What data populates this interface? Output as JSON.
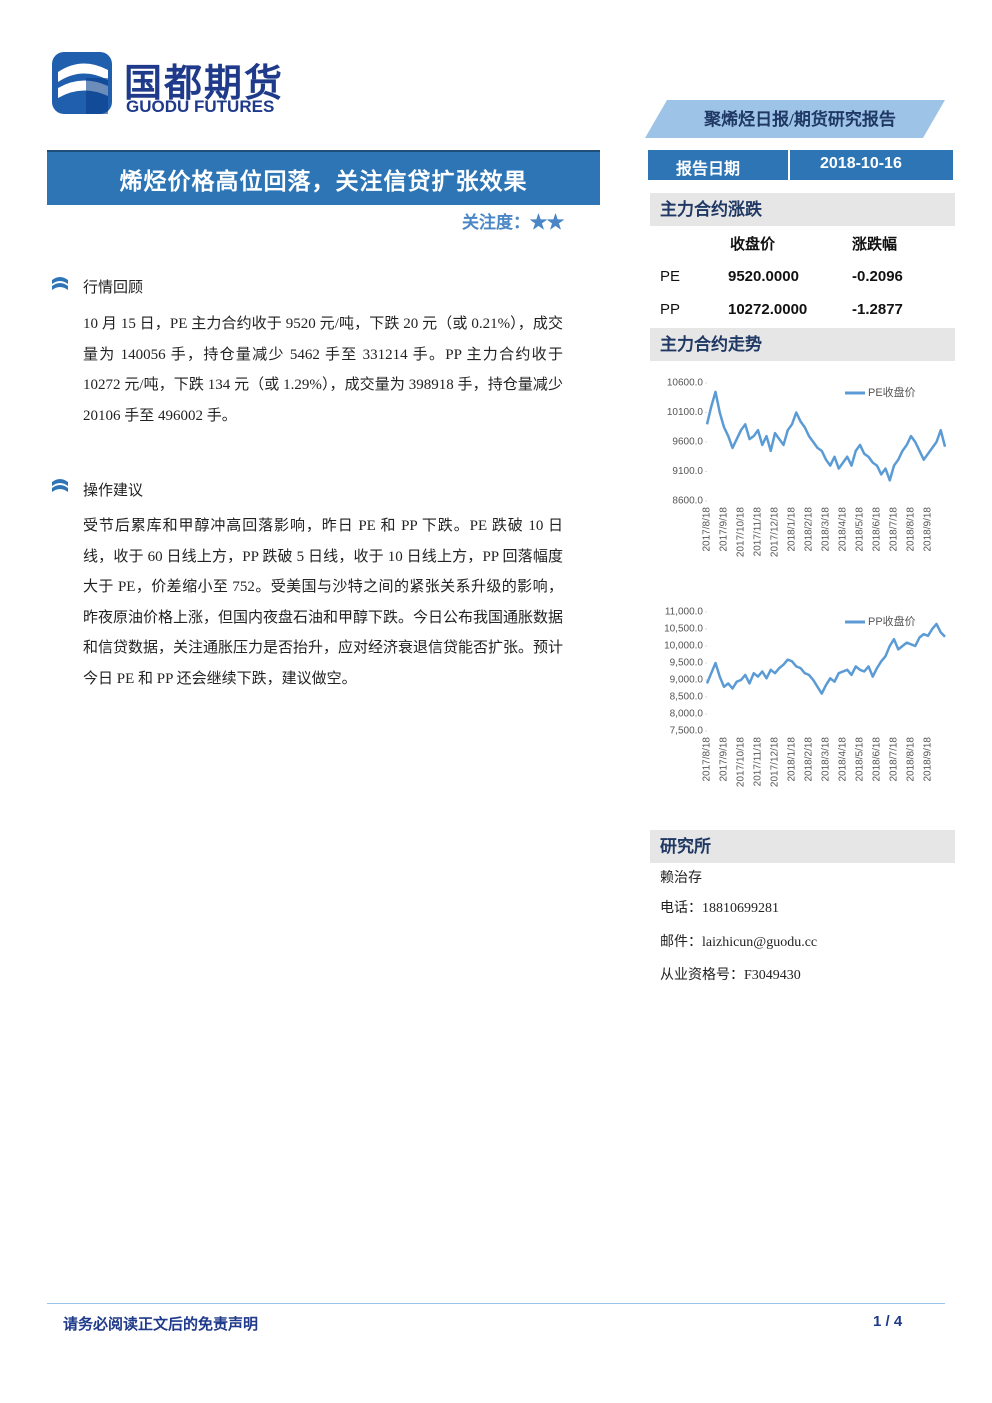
{
  "header": {
    "logo_cn": "国都期货",
    "logo_en": "GUODU FUTURES",
    "report_type": "聚烯烃日报/期货研究报告"
  },
  "title": "烯烃价格高位回落，关注信贷扩张效果",
  "focus": {
    "label": "关注度：",
    "stars": "★★"
  },
  "date": {
    "label": "报告日期",
    "value": "2018-10-16"
  },
  "sections": [
    {
      "heading": "行情回顾",
      "text": "10 月 15 日，PE 主力合约收于 9520 元/吨，下跌 20 元（或 0.21%），成交量为 140056 手，持仓量减少 5462 手至 331214 手。PP 主力合约收于 10272 元/吨，下跌 134 元（或 1.29%），成交量为 398918 手，持仓量减少 20106 手至 496002 手。"
    },
    {
      "heading": "操作建议",
      "text": "受节后累库和甲醇冲高回落影响，昨日 PE 和 PP 下跌。PE 跌破 10 日线，收于 60 日线上方，PP 跌破 5 日线，收于 10 日线上方，PP 回落幅度大于 PE，价差缩小至 752。受美国与沙特之间的紧张关系升级的影响，昨夜原油价格上涨，但国内夜盘石油和甲醇下跌。今日公布我国通胀数据和信贷数据，关注通胀压力是否抬升，应对经济衰退信贷能否扩张。预计今日 PE 和 PP 还会继续下跌，建议做空。"
    }
  ],
  "sidebar": {
    "change_heading": "主力合约涨跌",
    "table": {
      "header": [
        "收盘价",
        "涨跌幅"
      ],
      "rows": [
        [
          "PE",
          "9520.0000",
          "-0.2096"
        ],
        [
          "PP",
          "10272.0000",
          "-1.2877"
        ]
      ]
    },
    "trend_heading": "主力合约走势"
  },
  "chart_data": [
    {
      "type": "line",
      "categories": [
        "2017/8/18",
        null,
        null,
        null,
        "2017/9/18",
        null,
        null,
        null,
        "2017/10/18",
        null,
        null,
        null,
        "2017/11/18",
        null,
        null,
        null,
        "2017/12/18",
        null,
        null,
        null,
        "2018/1/18",
        null,
        null,
        null,
        "2018/2/18",
        null,
        null,
        null,
        "2018/3/18",
        null,
        null,
        null,
        "2018/4/18",
        null,
        null,
        null,
        "2018/5/18",
        null,
        null,
        null,
        "2018/6/18",
        null,
        null,
        null,
        "2018/7/18",
        null,
        null,
        null,
        "2018/8/18",
        null,
        null,
        null,
        "2018/9/18",
        null,
        null,
        null,
        null
      ],
      "series": [
        {
          "name": "PE收盘价",
          "color": "#5b9bd5",
          "values": [
            9900,
            10200,
            10450,
            10100,
            9850,
            9700,
            9500,
            9650,
            9800,
            9900,
            9650,
            9700,
            9800,
            9550,
            9700,
            9450,
            9750,
            9650,
            9550,
            9800,
            9900,
            10100,
            9950,
            9850,
            9700,
            9600,
            9500,
            9450,
            9300,
            9200,
            9350,
            9150,
            9250,
            9350,
            9200,
            9450,
            9550,
            9400,
            9350,
            9250,
            9200,
            9050,
            9150,
            8950,
            9200,
            9300,
            9450,
            9550,
            9700,
            9600,
            9450,
            9300,
            9400,
            9500,
            9600,
            9800,
            9520
          ]
        }
      ],
      "ylim": [
        8600,
        10600
      ],
      "yticks": [
        {
          "value": 8600,
          "label": "8600.0"
        },
        {
          "value": 9100,
          "label": "9100.0"
        },
        {
          "value": 9600,
          "label": "9600.0"
        },
        {
          "value": 10100,
          "label": "10100.0"
        },
        {
          "value": 10600,
          "label": "10600.0"
        }
      ],
      "grid": false,
      "legend": "top-right"
    },
    {
      "type": "line",
      "categories": [
        "2017/8/18",
        null,
        null,
        null,
        "2017/9/18",
        null,
        null,
        null,
        "2017/10/18",
        null,
        null,
        null,
        "2017/11/18",
        null,
        null,
        null,
        "2017/12/18",
        null,
        null,
        null,
        "2018/1/18",
        null,
        null,
        null,
        "2018/2/18",
        null,
        null,
        null,
        "2018/3/18",
        null,
        null,
        null,
        "2018/4/18",
        null,
        null,
        null,
        "2018/5/18",
        null,
        null,
        null,
        "2018/6/18",
        null,
        null,
        null,
        "2018/7/18",
        null,
        null,
        null,
        "2018/8/18",
        null,
        null,
        null,
        "2018/9/18",
        null,
        null,
        null,
        null
      ],
      "series": [
        {
          "name": "PP收盘价",
          "color": "#5b9bd5",
          "values": [
            8900,
            9200,
            9500,
            9100,
            8800,
            8900,
            8750,
            8950,
            9000,
            9150,
            8900,
            9200,
            9100,
            9250,
            9050,
            9300,
            9200,
            9350,
            9450,
            9600,
            9550,
            9400,
            9350,
            9200,
            9150,
            9000,
            8800,
            8600,
            8850,
            9050,
            8950,
            9200,
            9250,
            9300,
            9150,
            9400,
            9300,
            9250,
            9400,
            9100,
            9350,
            9550,
            9700,
            10000,
            10200,
            9900,
            10000,
            10100,
            10050,
            10000,
            10250,
            10350,
            10300,
            10500,
            10650,
            10400,
            10272
          ]
        }
      ],
      "ylim": [
        7500,
        11000
      ],
      "yticks": [
        {
          "value": 7500,
          "label": "7,500.0"
        },
        {
          "value": 8000,
          "label": "8,000.0"
        },
        {
          "value": 8500,
          "label": "8,500.0"
        },
        {
          "value": 9000,
          "label": "9,000.0"
        },
        {
          "value": 9500,
          "label": "9,500.0"
        },
        {
          "value": 10000,
          "label": "10,000.0"
        },
        {
          "value": 10500,
          "label": "10,500.0"
        },
        {
          "value": 11000,
          "label": "11,000.0"
        }
      ],
      "grid": false,
      "legend": "top-right"
    }
  ],
  "research": {
    "heading": "研究所",
    "analyst": "赖治存",
    "phone": "电话：18810699281",
    "email": "邮件：laizhicun@guodu.cc",
    "license": "从业资格号：F3049430"
  },
  "footer": {
    "disclaimer": "请务必阅读正文后的免责声明",
    "page": "1 / 4"
  }
}
